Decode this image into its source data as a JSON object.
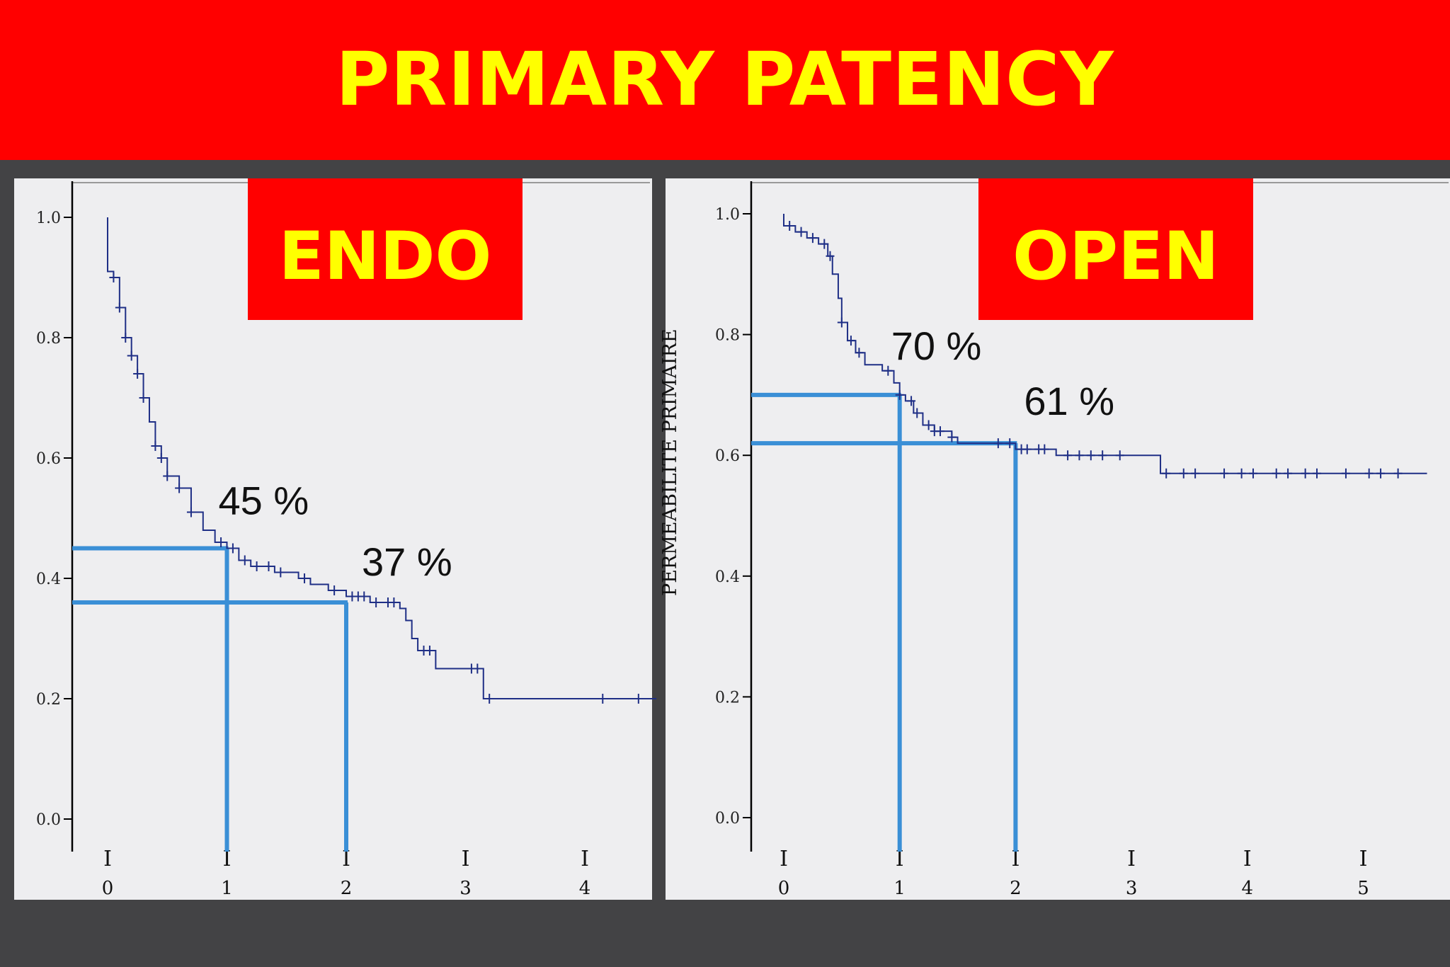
{
  "banner": {
    "title": "PRIMARY PATENCY"
  },
  "colors": {
    "banner_bg": "#ff0000",
    "banner_text": "#ffff00",
    "page_bg": "#434345",
    "plot_bg": "#eeeef0",
    "curve": "#1f2f86",
    "reference_lines": "#3a8fd6",
    "label_box": "#ff0000",
    "label_text": "#ffff00"
  },
  "chart_data": [
    {
      "type": "line",
      "subtype": "kaplan-meier step curve",
      "title": "ENDO",
      "xlabel": "",
      "ylabel": "",
      "xlim": [
        -0.3,
        4.6
      ],
      "ylim": [
        0.0,
        1.0
      ],
      "x_ticks": [
        "0",
        "1",
        "2",
        "3",
        "4"
      ],
      "y_ticks": [
        "0.0",
        "0.2",
        "0.4",
        "0.6",
        "0.8",
        "1.0"
      ],
      "grid": false,
      "series": [
        {
          "points": [
            [
              0.0,
              1.0
            ],
            [
              0.0,
              0.91
            ],
            [
              0.05,
              0.9
            ],
            [
              0.1,
              0.85
            ],
            [
              0.15,
              0.8
            ],
            [
              0.2,
              0.77
            ],
            [
              0.25,
              0.74
            ],
            [
              0.3,
              0.7
            ],
            [
              0.35,
              0.66
            ],
            [
              0.4,
              0.62
            ],
            [
              0.45,
              0.6
            ],
            [
              0.5,
              0.57
            ],
            [
              0.6,
              0.55
            ],
            [
              0.7,
              0.51
            ],
            [
              0.8,
              0.48
            ],
            [
              0.9,
              0.46
            ],
            [
              1.0,
              0.45
            ],
            [
              1.1,
              0.43
            ],
            [
              1.2,
              0.42
            ],
            [
              1.4,
              0.41
            ],
            [
              1.6,
              0.4
            ],
            [
              1.7,
              0.39
            ],
            [
              1.85,
              0.38
            ],
            [
              2.0,
              0.37
            ],
            [
              2.2,
              0.36
            ],
            [
              2.45,
              0.35
            ],
            [
              2.5,
              0.33
            ],
            [
              2.55,
              0.3
            ],
            [
              2.6,
              0.28
            ],
            [
              2.75,
              0.28
            ],
            [
              2.75,
              0.25
            ],
            [
              3.15,
              0.25
            ],
            [
              3.15,
              0.2
            ],
            [
              4.6,
              0.2
            ]
          ],
          "censor_x": [
            0.05,
            0.1,
            0.15,
            0.2,
            0.25,
            0.3,
            0.4,
            0.45,
            0.5,
            0.6,
            0.7,
            0.95,
            1.05,
            1.15,
            1.25,
            1.35,
            1.45,
            1.65,
            1.9,
            2.05,
            2.1,
            2.15,
            2.25,
            2.35,
            2.4,
            2.65,
            2.7,
            3.05,
            3.1,
            3.2,
            4.15,
            4.45
          ]
        }
      ],
      "annotations": [
        {
          "text": "45 %",
          "x": 1.0,
          "y": 0.45
        },
        {
          "text": "37 %",
          "x": 2.0,
          "y": 0.36
        }
      ]
    },
    {
      "type": "line",
      "subtype": "kaplan-meier step curve",
      "title": "OPEN",
      "xlabel": "",
      "ylabel": "PERMEABILITE PRIMAIRE",
      "xlim": [
        -0.3,
        5.7
      ],
      "ylim": [
        0.0,
        1.0
      ],
      "x_ticks": [
        "0",
        "1",
        "2",
        "3",
        "4",
        "5"
      ],
      "y_ticks": [
        "0.0",
        "0.2",
        "0.4",
        "0.6",
        "0.8",
        "1.0"
      ],
      "grid": false,
      "series": [
        {
          "points": [
            [
              0.0,
              1.0
            ],
            [
              0.0,
              0.98
            ],
            [
              0.1,
              0.97
            ],
            [
              0.2,
              0.96
            ],
            [
              0.3,
              0.95
            ],
            [
              0.38,
              0.93
            ],
            [
              0.42,
              0.9
            ],
            [
              0.47,
              0.86
            ],
            [
              0.5,
              0.82
            ],
            [
              0.55,
              0.79
            ],
            [
              0.62,
              0.77
            ],
            [
              0.7,
              0.75
            ],
            [
              0.85,
              0.74
            ],
            [
              0.95,
              0.72
            ],
            [
              1.0,
              0.7
            ],
            [
              1.05,
              0.69
            ],
            [
              1.12,
              0.67
            ],
            [
              1.2,
              0.65
            ],
            [
              1.3,
              0.64
            ],
            [
              1.45,
              0.63
            ],
            [
              1.5,
              0.62
            ],
            [
              1.95,
              0.62
            ],
            [
              2.0,
              0.61
            ],
            [
              2.3,
              0.61
            ],
            [
              2.35,
              0.6
            ],
            [
              3.2,
              0.6
            ],
            [
              3.25,
              0.57
            ],
            [
              5.55,
              0.57
            ]
          ],
          "censor_x": [
            0.05,
            0.15,
            0.25,
            0.35,
            0.4,
            0.5,
            0.58,
            0.65,
            0.9,
            1.0,
            1.1,
            1.15,
            1.25,
            1.3,
            1.35,
            1.45,
            1.85,
            1.95,
            2.05,
            2.1,
            2.2,
            2.25,
            2.45,
            2.55,
            2.65,
            2.75,
            2.9,
            3.3,
            3.45,
            3.55,
            3.8,
            3.95,
            4.05,
            4.25,
            4.35,
            4.5,
            4.6,
            4.85,
            5.05,
            5.15,
            5.3
          ]
        }
      ],
      "annotations": [
        {
          "text": "70 %",
          "x": 1.0,
          "y": 0.7
        },
        {
          "text": "61 %",
          "x": 2.0,
          "y": 0.62
        }
      ]
    }
  ]
}
